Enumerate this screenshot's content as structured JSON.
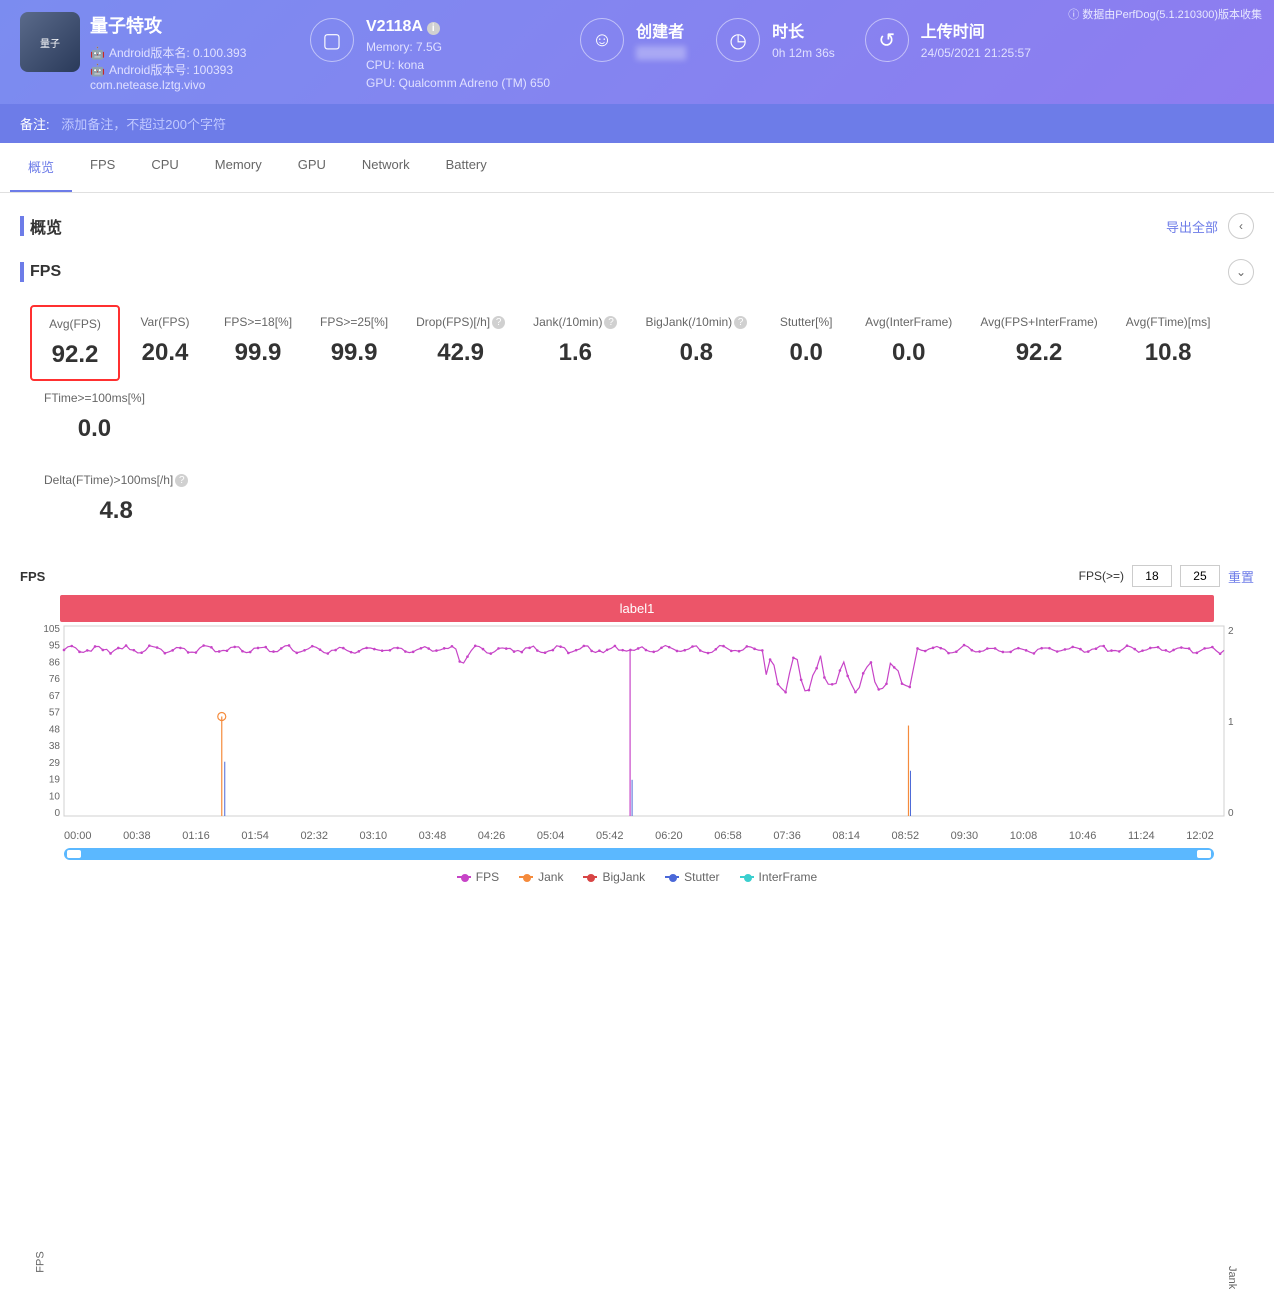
{
  "header": {
    "top_note": "ⓘ 数据由PerfDog(5.1.210300)版本收集",
    "app": {
      "title": "量子特攻",
      "android_name_label": "Android版本名: 0.100.393",
      "android_num_label": "Android版本号: 100393",
      "package": "com.netease.lztg.vivo"
    },
    "device": {
      "model": "V2118A",
      "memory": "Memory: 7.5G",
      "cpu": "CPU: kona",
      "gpu": "GPU: Qualcomm Adreno (TM) 650"
    },
    "creator": {
      "label": "创建者",
      "value": ""
    },
    "duration": {
      "label": "时长",
      "value": "0h 12m 36s"
    },
    "upload": {
      "label": "上传时间",
      "value": "24/05/2021 21:25:57"
    }
  },
  "remark": {
    "label": "备注:",
    "placeholder": "添加备注，不超过200个字符"
  },
  "tabs": {
    "items": [
      {
        "label": "概览",
        "active": true
      },
      {
        "label": "FPS"
      },
      {
        "label": "CPU"
      },
      {
        "label": "Memory"
      },
      {
        "label": "GPU"
      },
      {
        "label": "Network"
      },
      {
        "label": "Battery"
      }
    ]
  },
  "overview": {
    "title": "概览",
    "export_all": "导出全部"
  },
  "fps_section": {
    "title": "FPS",
    "metrics": [
      {
        "label": "Avg(FPS)",
        "value": "92.2",
        "highlight": true
      },
      {
        "label": "Var(FPS)",
        "value": "20.4"
      },
      {
        "label": "FPS>=18[%]",
        "value": "99.9"
      },
      {
        "label": "FPS>=25[%]",
        "value": "99.9"
      },
      {
        "label": "Drop(FPS)[/h]",
        "value": "42.9",
        "help": true
      },
      {
        "label": "Jank(/10min)",
        "value": "1.6",
        "help": true
      },
      {
        "label": "BigJank(/10min)",
        "value": "0.8",
        "help": true
      },
      {
        "label": "Stutter[%]",
        "value": "0.0"
      },
      {
        "label": "Avg(InterFrame)",
        "value": "0.0"
      },
      {
        "label": "Avg(FPS+InterFrame)",
        "value": "92.2"
      },
      {
        "label": "Avg(FTime)[ms]",
        "value": "10.8"
      },
      {
        "label": "FTime>=100ms[%]",
        "value": "0.0"
      }
    ],
    "metrics2": [
      {
        "label": "Delta(FTime)>100ms[/h]",
        "value": "4.8",
        "help": true
      }
    ]
  },
  "chart": {
    "title": "FPS",
    "fps_geq_label": "FPS(>=)",
    "fps_geq_1": "18",
    "fps_geq_2": "25",
    "reset": "重置",
    "label_bar": "label1",
    "y_left_ticks": [
      "105",
      "95",
      "86",
      "76",
      "67",
      "57",
      "48",
      "38",
      "29",
      "19",
      "10",
      "0"
    ],
    "y_left_label": "FPS",
    "y_right_ticks": [
      "2",
      "1",
      "0"
    ],
    "y_right_label": "Jank",
    "x_ticks": [
      "00:00",
      "00:38",
      "01:16",
      "01:54",
      "02:32",
      "03:10",
      "03:48",
      "04:26",
      "05:04",
      "05:42",
      "06:20",
      "06:58",
      "07:36",
      "08:14",
      "08:52",
      "09:30",
      "10:08",
      "10:46",
      "11:24",
      "12:02"
    ],
    "legend": [
      {
        "name": "FPS",
        "color": "#c744c7"
      },
      {
        "name": "Jank",
        "color": "#f58b3c"
      },
      {
        "name": "BigJank",
        "color": "#d84545"
      },
      {
        "name": "Stutter",
        "color": "#4a68d8"
      },
      {
        "name": "InterFrame",
        "color": "#3bcfcf"
      }
    ],
    "fps_color": "#c744c7",
    "jank_color": "#f58b3c",
    "bigjank_color": "#d84545",
    "stutter_color": "#4a68d8",
    "plot_bg": "#ffffff",
    "plot_border": "#d0d0d0"
  }
}
